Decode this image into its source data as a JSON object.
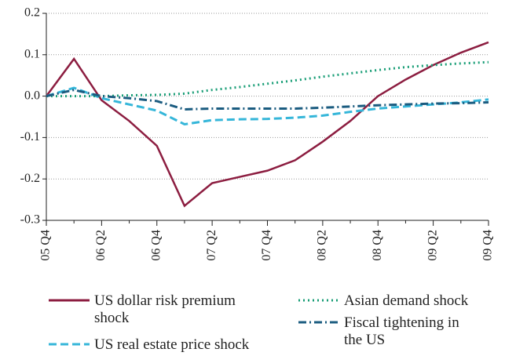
{
  "chart_data": {
    "type": "line",
    "categories": [
      "05 Q4",
      null,
      "06 Q2",
      null,
      "06 Q4",
      null,
      "07 Q2",
      null,
      "07 Q4",
      null,
      "08 Q2",
      null,
      "08 Q4",
      null,
      "09 Q2",
      null,
      "09 Q4"
    ],
    "series": [
      {
        "name": "US dollar risk premium shock",
        "color": "#8c1d40",
        "dash": "solid",
        "values": [
          0,
          0.09,
          -0.01,
          -0.06,
          -0.12,
          -0.265,
          -0.21,
          -0.195,
          -0.18,
          -0.155,
          -0.11,
          -0.06,
          0,
          0.04,
          0.075,
          0.105,
          0.13
        ]
      },
      {
        "name": "US real estate price shock",
        "color": "#35b6d9",
        "dash": "dashed",
        "values": [
          0,
          0.02,
          -0.005,
          -0.02,
          -0.035,
          -0.068,
          -0.058,
          -0.056,
          -0.055,
          -0.052,
          -0.047,
          -0.038,
          -0.03,
          -0.025,
          -0.02,
          -0.015,
          -0.008
        ]
      },
      {
        "name": "Asian demand shock",
        "color": "#1a9e77",
        "dash": "dotted",
        "values": [
          0,
          0,
          0,
          0.002,
          0.003,
          0.006,
          0.015,
          0.022,
          0.03,
          0.038,
          0.047,
          0.055,
          0.063,
          0.07,
          0.075,
          0.079,
          0.082
        ]
      },
      {
        "name": "Fiscal tightening in the US",
        "color": "#1b5c80",
        "dash": "dashdot",
        "values": [
          0,
          0.015,
          0,
          -0.005,
          -0.012,
          -0.032,
          -0.03,
          -0.03,
          -0.03,
          -0.03,
          -0.028,
          -0.025,
          -0.022,
          -0.02,
          -0.018,
          -0.017,
          -0.015
        ]
      }
    ],
    "ylim": [
      -0.3,
      0.2
    ],
    "yticks": [
      -0.3,
      -0.2,
      -0.1,
      {
        "value": 0,
        "label": "0.0"
      },
      0.1,
      0.2
    ],
    "grid": true
  }
}
